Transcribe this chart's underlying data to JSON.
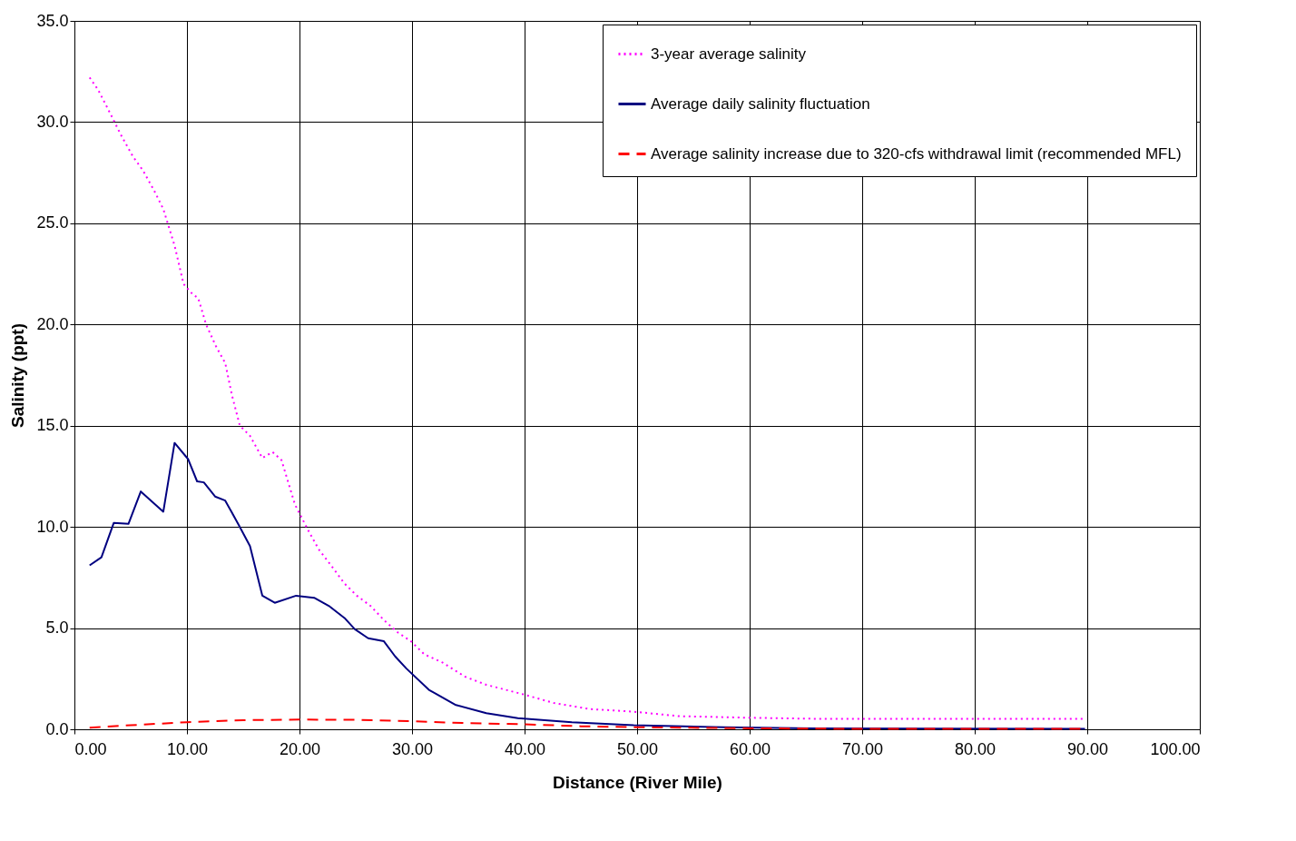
{
  "chart_data": {
    "type": "line",
    "xlabel": "Distance (River Mile)",
    "ylabel": "Salinity (ppt)",
    "xlim": [
      0,
      100
    ],
    "ylim": [
      0,
      35
    ],
    "xticks": [
      {
        "value": 0,
        "label": "0.00"
      },
      {
        "value": 10,
        "label": "10.00"
      },
      {
        "value": 20,
        "label": "20.00"
      },
      {
        "value": 30,
        "label": "30.00"
      },
      {
        "value": 40,
        "label": "40.00"
      },
      {
        "value": 50,
        "label": "50.00"
      },
      {
        "value": 60,
        "label": "60.00"
      },
      {
        "value": 70,
        "label": "70.00"
      },
      {
        "value": 80,
        "label": "80.00"
      },
      {
        "value": 90,
        "label": "90.00"
      },
      {
        "value": 100,
        "label": "100.00"
      }
    ],
    "yticks": [
      {
        "value": 0,
        "label": "0.0"
      },
      {
        "value": 5,
        "label": "5.0"
      },
      {
        "value": 10,
        "label": "10.0"
      },
      {
        "value": 15,
        "label": "15.0"
      },
      {
        "value": 20,
        "label": "20.0"
      },
      {
        "value": 25,
        "label": "25.0"
      },
      {
        "value": 30,
        "label": "30.0"
      },
      {
        "value": 35,
        "label": "35.0"
      }
    ],
    "grid": true,
    "legend": "top right",
    "marker": "none",
    "series": [
      {
        "name": "3-year average salinity",
        "color": "#ff00ff",
        "line_style": "dotted",
        "x": [
          1.35,
          2.1,
          3.3,
          4.1,
          5.2,
          6.1,
          7.1,
          7.9,
          8.9,
          9.7,
          10.5,
          11.0,
          11.7,
          12.6,
          13.4,
          14.0,
          14.7,
          15.6,
          16.7,
          17.6,
          18.4,
          19.6,
          20.8,
          21.7,
          22.8,
          24.0,
          25.1,
          26.3,
          27.5,
          28.7,
          29.9,
          31.1,
          32.7,
          34.7,
          36.6,
          39.8,
          42.6,
          45.8,
          49.7,
          53.7,
          60.0,
          65.6,
          73.5,
          89.8
        ],
        "values": [
          32.2,
          31.6,
          30.3,
          29.4,
          28.3,
          27.6,
          26.6,
          25.7,
          23.9,
          22.0,
          21.5,
          21.3,
          20.0,
          18.9,
          18.1,
          16.5,
          15.0,
          14.5,
          13.4,
          13.7,
          13.3,
          11.1,
          9.8,
          8.9,
          8.1,
          7.2,
          6.6,
          6.1,
          5.4,
          4.8,
          4.35,
          3.7,
          3.3,
          2.6,
          2.2,
          1.74,
          1.3,
          1.0,
          0.87,
          0.65,
          0.57,
          0.52,
          0.52,
          0.52
        ]
      },
      {
        "name": "Average daily salinity fluctuation",
        "color": "#000080",
        "line_style": "solid",
        "x": [
          1.35,
          2.4,
          3.5,
          4.8,
          5.9,
          7.9,
          8.9,
          10.1,
          10.9,
          11.5,
          12.5,
          13.4,
          14.6,
          15.6,
          16.7,
          17.8,
          19.7,
          21.3,
          22.6,
          24.0,
          24.9,
          26.1,
          27.5,
          28.5,
          29.5,
          31.5,
          33.9,
          36.6,
          39.4,
          44.2,
          49.7,
          57.7,
          65.6,
          89.8
        ],
        "values": [
          8.1,
          8.5,
          10.2,
          10.15,
          11.75,
          10.75,
          14.15,
          13.35,
          12.25,
          12.2,
          11.5,
          11.3,
          10.1,
          9.05,
          6.6,
          6.25,
          6.6,
          6.5,
          6.1,
          5.5,
          4.95,
          4.5,
          4.35,
          3.6,
          3.0,
          1.95,
          1.2,
          0.8,
          0.55,
          0.35,
          0.2,
          0.1,
          0.05,
          0.02
        ]
      },
      {
        "name": "Average salinity increase due to 320-cfs withdrawal limit (recommended MFL)",
        "color": "#ff0000",
        "line_style": "dashed",
        "x": [
          1.35,
          5,
          10,
          15,
          20,
          25,
          30,
          35,
          40,
          45,
          50,
          60,
          70,
          89.8
        ],
        "values": [
          0.08,
          0.2,
          0.35,
          0.45,
          0.48,
          0.47,
          0.4,
          0.3,
          0.25,
          0.15,
          0.1,
          0.05,
          0.02,
          0.02
        ]
      }
    ]
  }
}
